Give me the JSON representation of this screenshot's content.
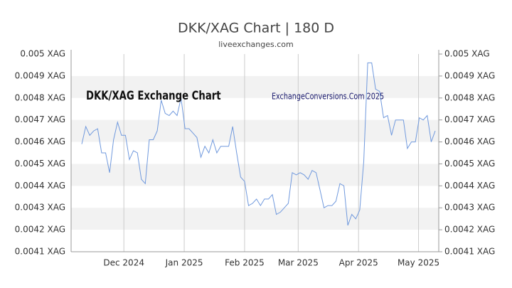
{
  "chart_data": {
    "type": "line",
    "title": "DKK/XAG Chart | 180 D",
    "subtitle": "liveexchanges.com",
    "annotations": [
      "DKK/XAG Exchange Chart",
      "ExchangeConversions.Com 2025"
    ],
    "color": "#7099dd",
    "values": [
      0.00459,
      0.00467,
      0.00463,
      0.00465,
      0.00466,
      0.00455,
      0.00455,
      0.00446,
      0.00461,
      0.00469,
      0.00463,
      0.00463,
      0.00452,
      0.00456,
      0.00455,
      0.00443,
      0.00441,
      0.00461,
      0.00461,
      0.00465,
      0.00479,
      0.00473,
      0.00472,
      0.00474,
      0.00472,
      0.0048,
      0.00466,
      0.00466,
      0.00464,
      0.00462,
      0.00453,
      0.00458,
      0.00455,
      0.00461,
      0.00455,
      0.00458,
      0.00458,
      0.00458,
      0.00467,
      0.00455,
      0.00444,
      0.00442,
      0.00431,
      0.00432,
      0.00434,
      0.00431,
      0.00434,
      0.00434,
      0.00436,
      0.00427,
      0.00428,
      0.0043,
      0.00432,
      0.00446,
      0.00445,
      0.00446,
      0.00445,
      0.00443,
      0.00447,
      0.00446,
      0.00438,
      0.0043,
      0.00431,
      0.00431,
      0.00433,
      0.00441,
      0.0044,
      0.00422,
      0.00427,
      0.00425,
      0.00429,
      0.00451,
      0.00496,
      0.00496,
      0.00484,
      0.00483,
      0.00471,
      0.00472,
      0.00463,
      0.0047,
      0.0047,
      0.0047,
      0.00457,
      0.0046,
      0.0046,
      0.00471,
      0.0047,
      0.00472,
      0.0046,
      0.00465
    ],
    "xlim": [
      0,
      89
    ],
    "xticks": [
      {
        "value": 10.6,
        "label": "Dec 2024"
      },
      {
        "value": 25.8,
        "label": "Jan 2025"
      },
      {
        "value": 41,
        "label": "Feb 2025"
      },
      {
        "value": 54.5,
        "label": "Mar 2025"
      },
      {
        "value": 69.7,
        "label": "Apr 2025"
      },
      {
        "value": 84.8,
        "label": "May 2025"
      }
    ],
    "ylim": [
      0.0041,
      0.005
    ],
    "yticks": [
      {
        "value": 0.0041,
        "label": "0.0041 XAG"
      },
      {
        "value": 0.0042,
        "label": "0.0042 XAG"
      },
      {
        "value": 0.0043,
        "label": "0.0043 XAG"
      },
      {
        "value": 0.0044,
        "label": "0.0044 XAG"
      },
      {
        "value": 0.0045,
        "label": "0.0045 XAG"
      },
      {
        "value": 0.0046,
        "label": "0.0046 XAG"
      },
      {
        "value": 0.0047,
        "label": "0.0047 XAG"
      },
      {
        "value": 0.0048,
        "label": "0.0048 XAG"
      },
      {
        "value": 0.0049,
        "label": "0.0049 XAG"
      },
      {
        "value": 0.005,
        "label": "0.005 XAG"
      }
    ],
    "grid": true
  }
}
